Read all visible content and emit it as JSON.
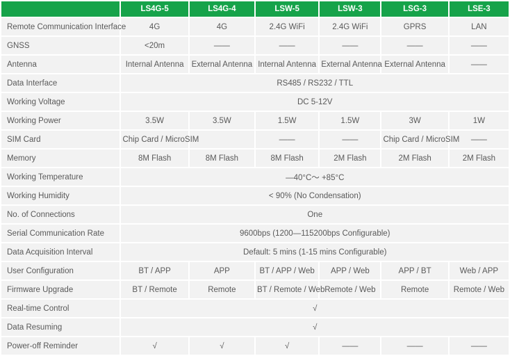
{
  "table": {
    "header": {
      "corner": "",
      "columns": [
        "LS4G-5",
        "LS4G-4",
        "LSW-5",
        "LSW-3",
        "LSG-3",
        "LSE-3"
      ]
    },
    "rows": [
      {
        "label": "Remote Communication Interface",
        "cells": [
          "4G",
          "4G",
          "2.4G WiFi",
          "2.4G WiFi",
          "GPRS",
          "LAN"
        ]
      },
      {
        "label": "GNSS",
        "cells": [
          "<20m",
          "——",
          "——",
          "——",
          "——",
          "——"
        ]
      },
      {
        "label": "Antenna",
        "cells": [
          "Internal Antenna",
          "External Antenna",
          "Internal Antenna",
          "External Antenna",
          "External Antenna",
          "——"
        ]
      },
      {
        "label": "Data Interface",
        "span": "RS485 / RS232 / TTL"
      },
      {
        "label": "Working Voltage",
        "span": "DC 5-12V"
      },
      {
        "label": "Working Power",
        "cells": [
          "3.5W",
          "3.5W",
          "1.5W",
          "1.5W",
          "3W",
          "1W"
        ]
      },
      {
        "label": "SIM Card",
        "cells": [
          "Chip Card / MicroSIM",
          "",
          "——",
          "——",
          "Chip Card / MicroSIM",
          "——"
        ]
      },
      {
        "label": "Memory",
        "cells": [
          "8M Flash",
          "8M Flash",
          "8M Flash",
          "2M Flash",
          "2M Flash",
          "2M Flash"
        ]
      },
      {
        "label": "Working Temperature",
        "span": "—40°C～ +85°C"
      },
      {
        "label": "Working Humidity",
        "span": "< 90% (No Condensation)"
      },
      {
        "label": "No. of Connections",
        "span": "One"
      },
      {
        "label": "Serial Communication Rate",
        "span": "9600bps (1200—115200bps Configurable)"
      },
      {
        "label": "Data Acquisition Interval",
        "span": "Default: 5 mins (1-15 mins Configurable)"
      },
      {
        "label": "User Configuration",
        "cells": [
          "BT / APP",
          "APP",
          "BT / APP / Web",
          "APP / Web",
          "APP / BT",
          "Web / APP"
        ]
      },
      {
        "label": "Firmware Upgrade",
        "cells": [
          "BT / Remote",
          "Remote",
          "BT / Remote / Web",
          "Remote / Web",
          "Remote",
          "Remote / Web"
        ]
      },
      {
        "label": "Real-time Control",
        "span": "√"
      },
      {
        "label": "Data Resuming",
        "span": "√"
      },
      {
        "label": "Power-off Reminder",
        "cells": [
          "√",
          "√",
          "√",
          "——",
          "——",
          "——"
        ]
      }
    ],
    "colors": {
      "header_green": "#16a34a",
      "cell_gray": "#f2f2f2",
      "text_gray": "#595959"
    }
  }
}
